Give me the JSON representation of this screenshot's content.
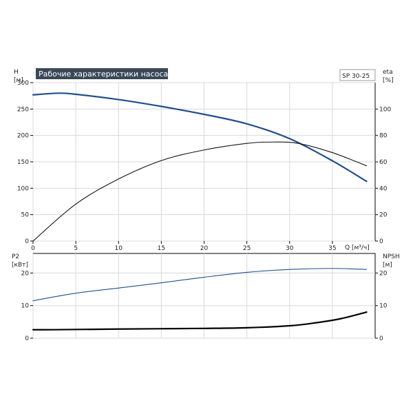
{
  "chart_data": [
    {
      "type": "line",
      "title": "Рабочие характеристики насоса",
      "model": "SP 30-25",
      "xlabel": "Q [м³/ч]",
      "ylabel_left": [
        "H",
        "[м]"
      ],
      "ylabel_right": [
        "eta",
        "[%]"
      ],
      "xlim": [
        0,
        40
      ],
      "ylim_left": [
        0,
        300
      ],
      "ylim_right": [
        0,
        120
      ],
      "x_ticks": [
        "0",
        "5",
        "10",
        "15",
        "20",
        "25",
        "30",
        "35"
      ],
      "y_ticks_left": [
        "0",
        "50",
        "100",
        "150",
        "200",
        "250",
        "300"
      ],
      "y_ticks_right": [
        "0",
        "20",
        "40",
        "60",
        "80",
        "100"
      ],
      "grid": true,
      "colors": {
        "head": "#1f4e8c",
        "eta": "#111111",
        "grid": "#d8d8d8",
        "title_bg": "#3a4858"
      },
      "series": [
        {
          "key": "head",
          "axis": "left",
          "x": [
            0,
            3,
            5,
            10,
            15,
            20,
            25,
            30,
            35,
            39
          ],
          "y": [
            277,
            280,
            278,
            268,
            255,
            240,
            222,
            194,
            152,
            113
          ]
        },
        {
          "key": "eta",
          "axis": "right",
          "x": [
            0,
            5,
            10,
            15,
            20,
            25,
            28,
            31,
            35,
            39
          ],
          "y": [
            0,
            28,
            47,
            61,
            69,
            74,
            75,
            74,
            67,
            57
          ]
        }
      ]
    },
    {
      "type": "line",
      "ylabel_left": [
        "P2",
        "[кВт]"
      ],
      "ylabel_right": [
        "NPSH",
        "[м]"
      ],
      "xlim": [
        0,
        40
      ],
      "ylim_left": [
        0,
        26
      ],
      "ylim_right": [
        0,
        26
      ],
      "y_ticks_left": [
        "0",
        "10",
        "20"
      ],
      "y_ticks_right": [
        "0",
        "10",
        "20"
      ],
      "grid": true,
      "colors": {
        "p2": "#1f4e8c",
        "npsh": "#000000",
        "grid": "#d8d8d8"
      },
      "series": [
        {
          "key": "p2",
          "axis": "left",
          "x": [
            0,
            5,
            10,
            15,
            20,
            25,
            30,
            35,
            39
          ],
          "y": [
            11.5,
            13.8,
            15.4,
            17.0,
            18.7,
            20.2,
            21.1,
            21.4,
            21.1
          ]
        },
        {
          "key": "npsh",
          "axis": "right",
          "x": [
            0,
            2.5,
            10,
            20,
            25,
            30,
            33,
            36,
            39
          ],
          "y": [
            2.6,
            2.6,
            2.8,
            3.0,
            3.2,
            3.8,
            4.7,
            6.0,
            8.0
          ]
        }
      ]
    }
  ]
}
